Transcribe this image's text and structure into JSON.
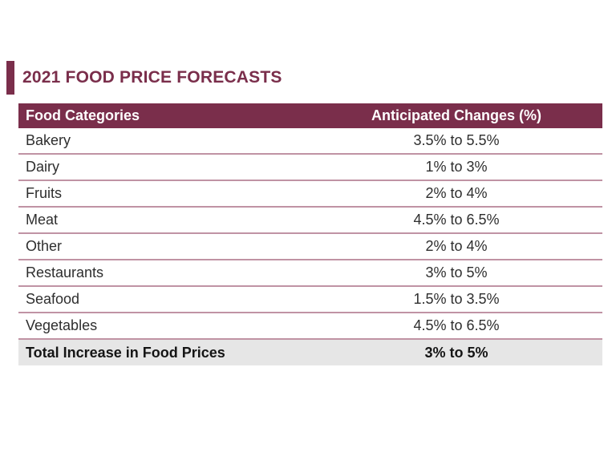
{
  "title": "2021 FOOD PRICE FORECASTS",
  "colors": {
    "accent_maroon": "#7a2e4b",
    "header_background": "#7a2e4b",
    "header_text": "#ffffff",
    "row_divider_pink": "#c093a4",
    "total_row_background": "#e6e6e6",
    "body_text": "#2e2e2e"
  },
  "chart_data": {
    "type": "table",
    "title": "2021 FOOD PRICE FORECASTS",
    "columns": [
      "Food Categories",
      "Anticipated Changes (%)"
    ],
    "rows": [
      [
        "Bakery",
        "3.5% to 5.5%"
      ],
      [
        "Dairy",
        "1% to 3%"
      ],
      [
        "Fruits",
        "2% to 4%"
      ],
      [
        "Meat",
        "4.5% to 6.5%"
      ],
      [
        "Other",
        "2% to 4%"
      ],
      [
        "Restaurants",
        "3% to 5%"
      ],
      [
        "Seafood",
        "1.5% to 3.5%"
      ],
      [
        "Vegetables",
        "4.5% to 6.5%"
      ]
    ],
    "footer": [
      "Total Increase in Food Prices",
      "3% to 5%"
    ]
  }
}
